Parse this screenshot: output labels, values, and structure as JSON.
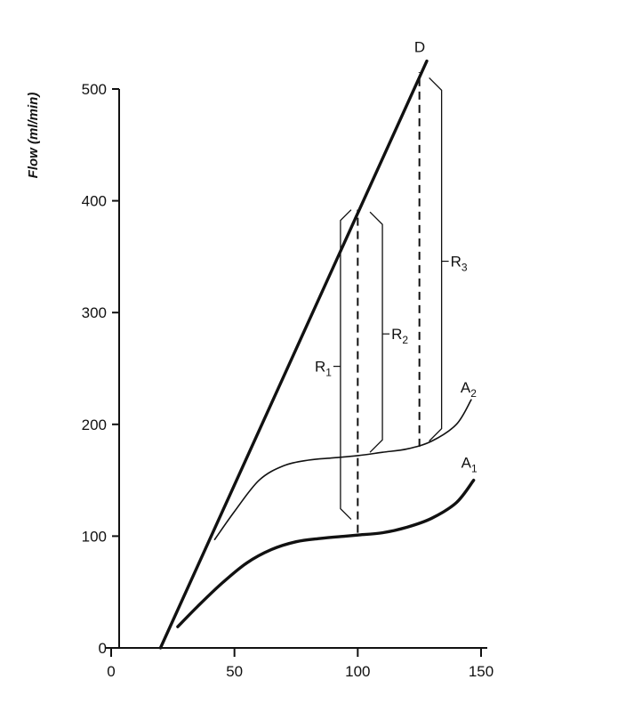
{
  "chart_data": {
    "type": "line",
    "title": "",
    "xlabel": "",
    "ylabel": "Flow (ml/min)",
    "xlim": [
      0,
      150
    ],
    "ylim": [
      0,
      500
    ],
    "x_ticks": [
      "0",
      "50",
      "100",
      "150"
    ],
    "y_ticks": [
      "0",
      "100",
      "200",
      "300",
      "400",
      "500"
    ],
    "grid": false,
    "series": [
      {
        "name": "D",
        "style": "thick",
        "color": "#111111",
        "x": [
          20,
          128
        ],
        "y": [
          0,
          525
        ]
      },
      {
        "name": "A",
        "sub": "2",
        "style": "thin",
        "color": "#111111",
        "x": [
          42,
          50,
          60,
          70,
          80,
          90,
          100,
          110,
          120,
          130,
          140,
          146
        ],
        "y": [
          97,
          122,
          150,
          163,
          168,
          170,
          172,
          175,
          178,
          185,
          200,
          222
        ]
      },
      {
        "name": "A",
        "sub": "1",
        "style": "thick",
        "color": "#111111",
        "x": [
          27,
          35,
          45,
          55,
          65,
          75,
          85,
          95,
          100,
          110,
          120,
          130,
          140,
          147
        ],
        "y": [
          19,
          37,
          58,
          76,
          88,
          95,
          98,
          100,
          101,
          103,
          108,
          116,
          130,
          150
        ]
      }
    ],
    "dashed_lines": [
      {
        "x": 100,
        "y1": 103,
        "y2": 392
      },
      {
        "x": 125,
        "y1": 180,
        "y2": 515
      }
    ],
    "brackets": [
      {
        "name": "R",
        "sub": "1",
        "x": 93,
        "y_low": 115,
        "y_high": 392
      },
      {
        "name": "R",
        "sub": "2",
        "x": 110,
        "y_low": 175,
        "y_high": 390
      },
      {
        "name": "R",
        "sub": "3",
        "x": 134,
        "y_low": 185,
        "y_high": 510
      }
    ]
  }
}
